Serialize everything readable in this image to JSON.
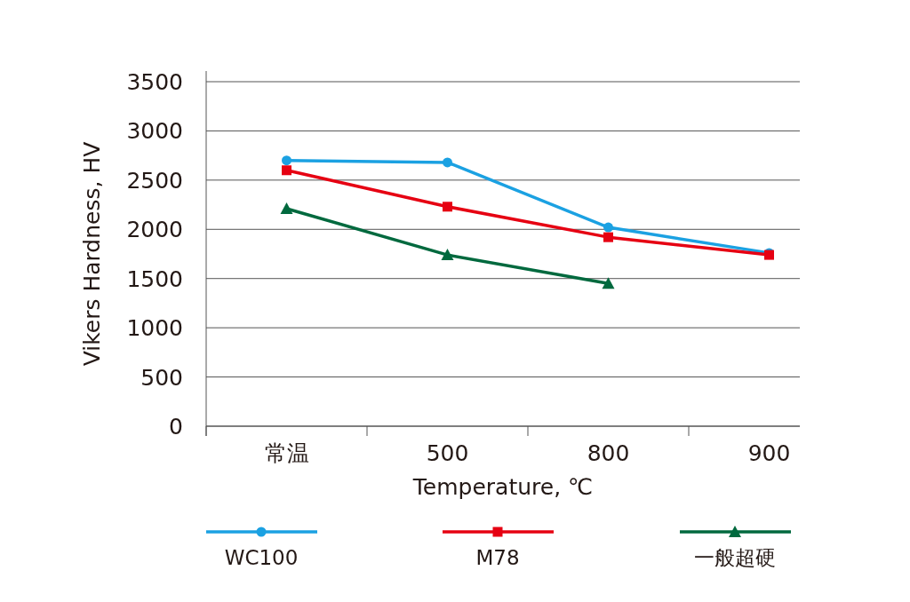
{
  "chart_data": {
    "type": "line",
    "xlabel": "Temperature, ℃",
    "ylabel": "Vikers Hardness, HV",
    "categories": [
      "常温",
      "500",
      "800",
      "900"
    ],
    "series": [
      {
        "name": "WC100",
        "color": "#1ba1e2",
        "marker": "circle",
        "values": [
          2700,
          2680,
          2020,
          1760
        ]
      },
      {
        "name": "M78",
        "color": "#e60012",
        "marker": "square",
        "values": [
          2600,
          2230,
          1920,
          1740
        ]
      },
      {
        "name": "一般超硬",
        "color": "#00693e",
        "marker": "triangle",
        "values": [
          2210,
          1740,
          1450,
          null
        ]
      }
    ],
    "ylim": [
      0,
      3500
    ],
    "yticks": [
      0,
      500,
      1000,
      1500,
      2000,
      2500,
      3000,
      3500
    ],
    "grid": "y",
    "legend": "bottom"
  }
}
